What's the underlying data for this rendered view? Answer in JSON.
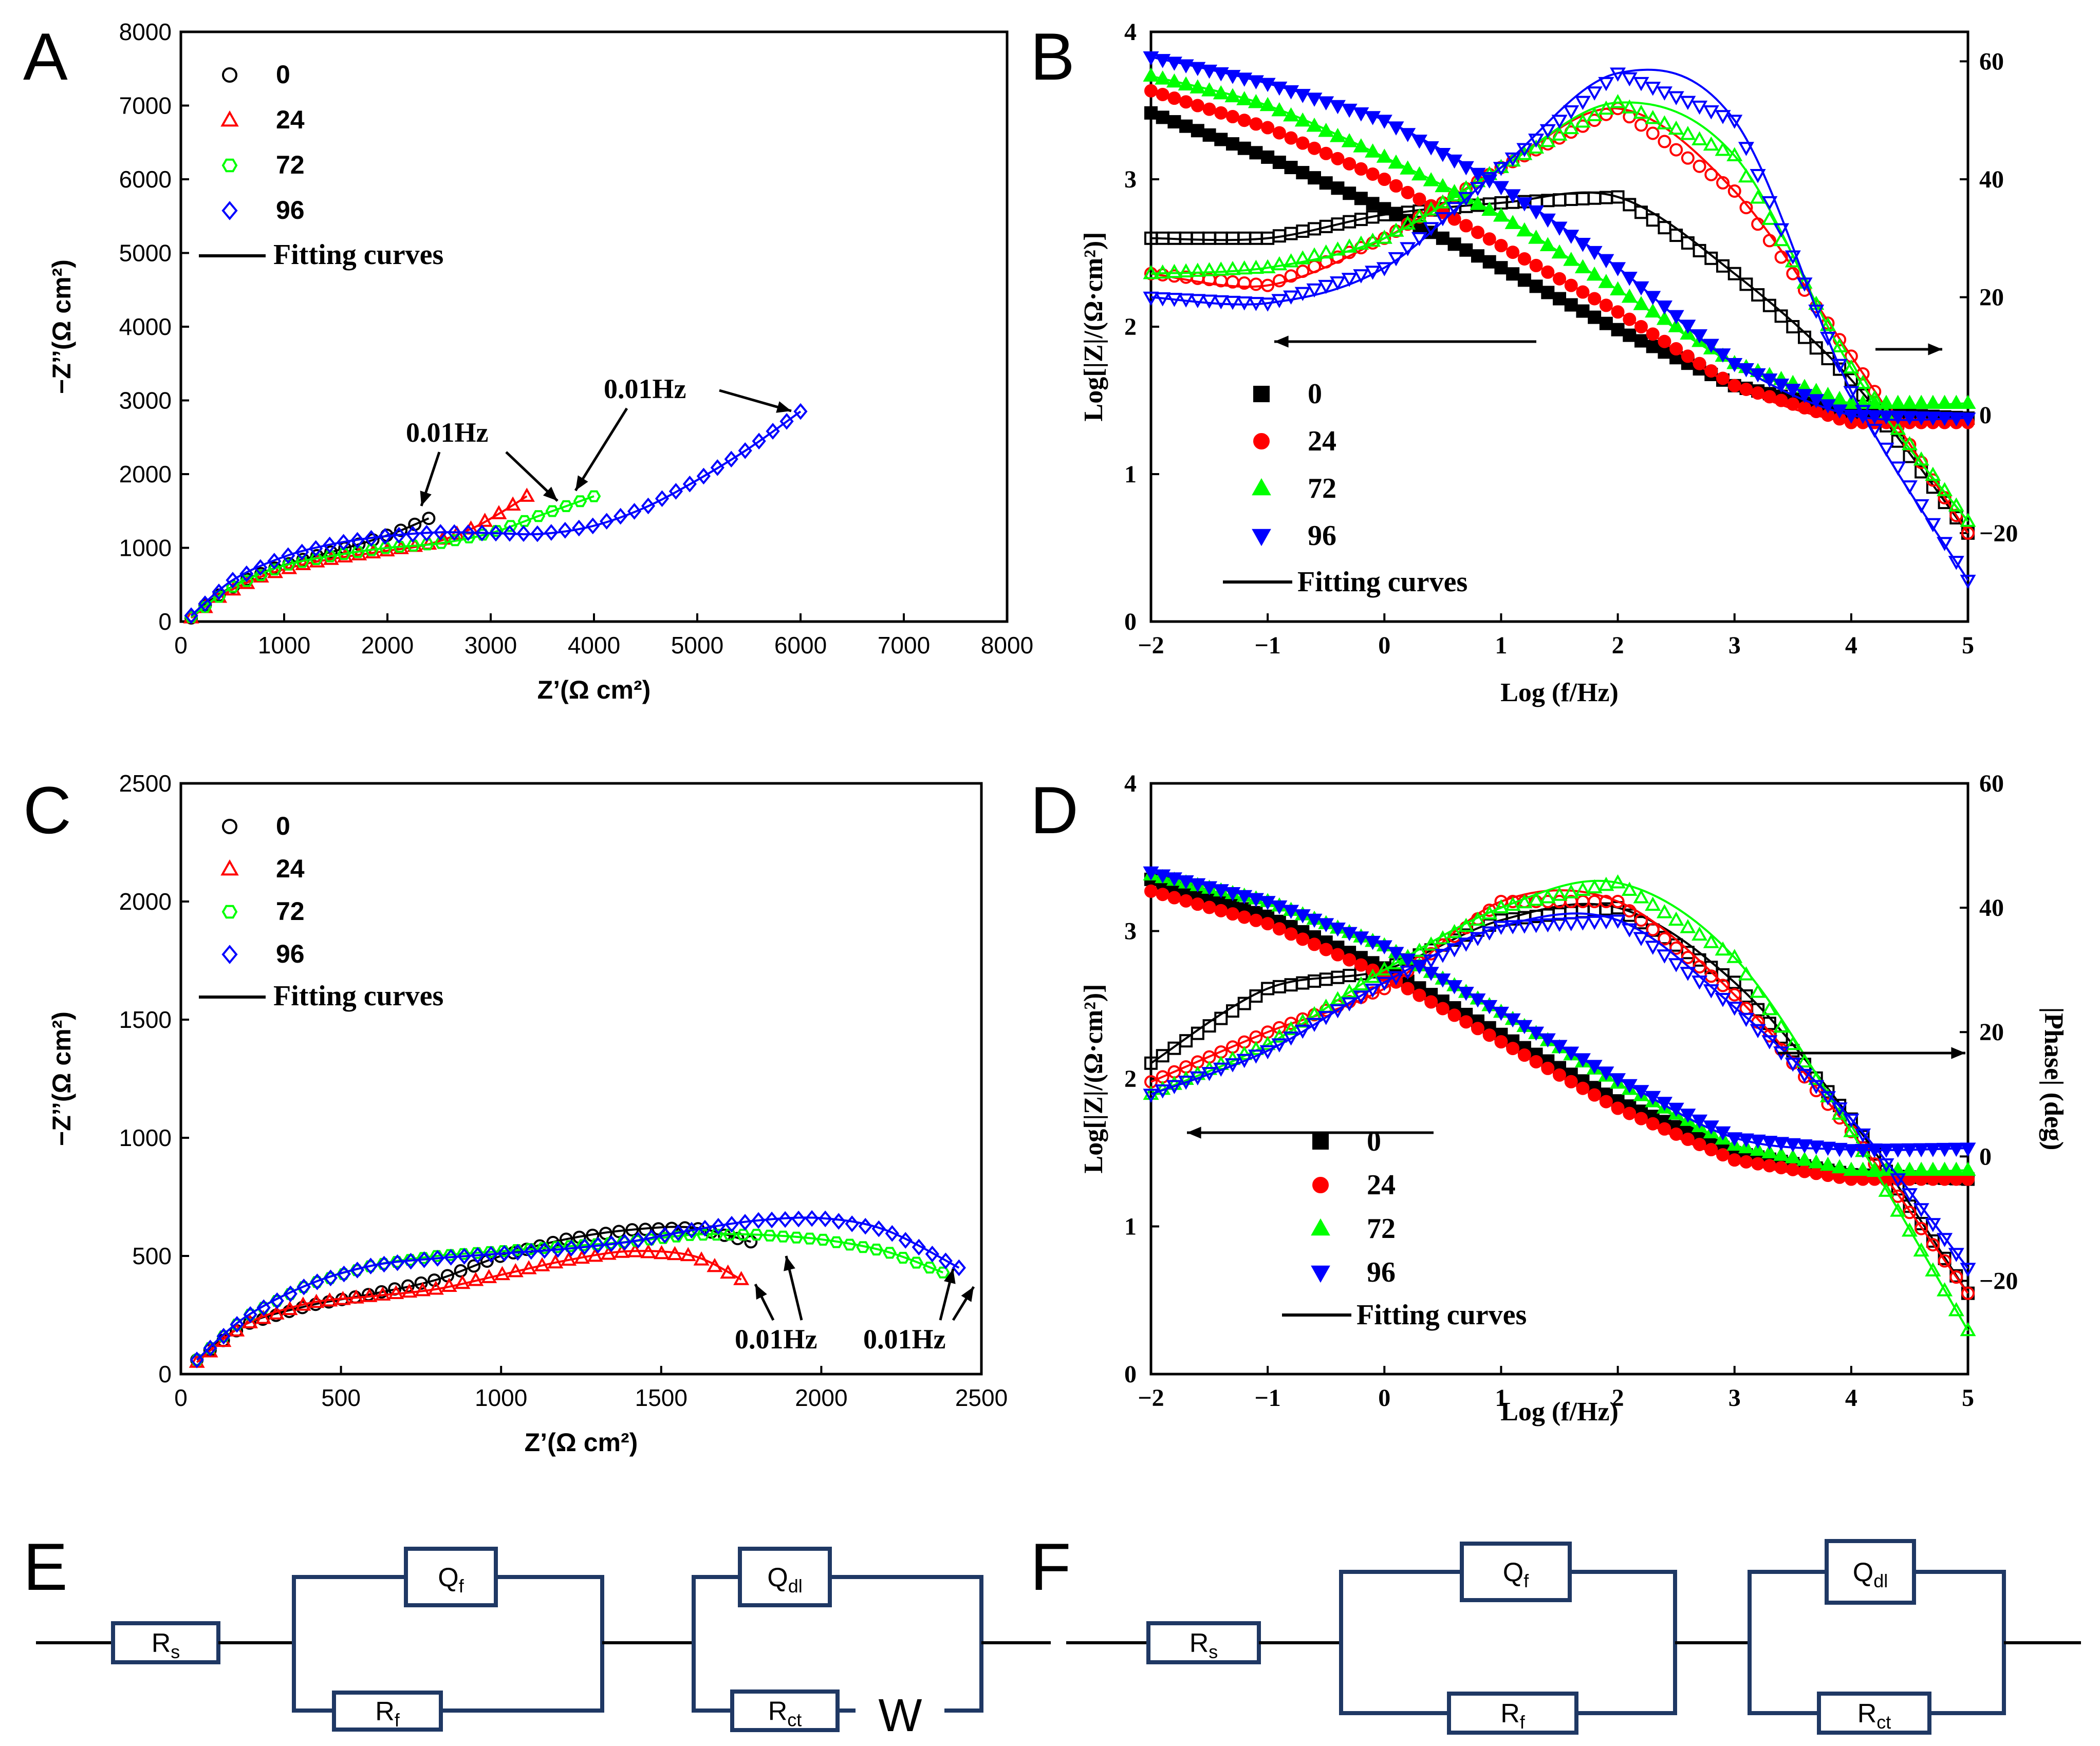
{
  "colors": {
    "s0": "#000000",
    "s24": "#ff0000",
    "s72": "#00ff00",
    "s96": "#0000ff",
    "frame": "#000000",
    "circuit": "#1f3864"
  },
  "legend_labels": [
    "0",
    "24",
    "72",
    "96"
  ],
  "fitting_label": "Fitting curves",
  "chart_data": [
    {
      "panel": "A",
      "type": "scatter",
      "title": "",
      "xlabel": "Z’(Ω cm²)",
      "ylabel": "−Z’’(Ω cm²)",
      "xlim": [
        0,
        8000
      ],
      "ylim": [
        0,
        8000
      ],
      "xticks": [
        "0",
        "1000",
        "2000",
        "3000",
        "4000",
        "5000",
        "6000",
        "7000",
        "8000"
      ],
      "yticks": [
        "0",
        "1000",
        "2000",
        "3000",
        "4000",
        "5000",
        "6000",
        "7000",
        "8000"
      ],
      "annotations": [
        "0.01Hz",
        "0.01Hz"
      ],
      "series": [
        {
          "name": "0",
          "x": [
            100,
            300,
            600,
            900,
            1200,
            1500,
            1800,
            2100,
            2400
          ],
          "y": [
            50,
            300,
            550,
            720,
            850,
            960,
            1080,
            1220,
            1400
          ]
        },
        {
          "name": "24",
          "x": [
            100,
            400,
            800,
            1200,
            1600,
            2000,
            2400,
            2800,
            3100,
            3350
          ],
          "y": [
            50,
            360,
            620,
            780,
            880,
            960,
            1050,
            1250,
            1480,
            1700
          ]
        },
        {
          "name": "72",
          "x": [
            100,
            500,
            1000,
            1500,
            2000,
            2500,
            3000,
            3500,
            4000
          ],
          "y": [
            60,
            470,
            760,
            900,
            1000,
            1060,
            1200,
            1450,
            1700
          ]
        },
        {
          "name": "96",
          "x": [
            100,
            500,
            1000,
            1500,
            2000,
            2500,
            3000,
            3500,
            4000,
            4500,
            5000,
            5500,
            6000
          ],
          "y": [
            80,
            560,
            880,
            1060,
            1160,
            1210,
            1200,
            1190,
            1300,
            1550,
            1920,
            2350,
            2850
          ]
        }
      ]
    },
    {
      "panel": "B",
      "type": "scatter",
      "title": "",
      "xlabel": "Log (f/Hz)",
      "ylabel": "Log[|Z|/(Ω·cm²)]",
      "xlim": [
        -2,
        5
      ],
      "ylim": [
        0,
        4
      ],
      "y2lim": [
        -35,
        65
      ],
      "xticks": [
        "−2",
        "−1",
        "0",
        "1",
        "2",
        "3",
        "4",
        "5"
      ],
      "yticks": [
        "0",
        "1",
        "2",
        "3",
        "4"
      ],
      "y2ticks": [
        "−20",
        "0",
        "20",
        "40",
        "60"
      ],
      "series": [
        {
          "name": "0",
          "x": [
            -2,
            -1,
            0,
            1,
            2,
            3,
            4,
            5
          ],
          "logZ": [
            3.45,
            3.15,
            2.8,
            2.4,
            1.98,
            1.6,
            1.42,
            1.38
          ],
          "phase": [
            30,
            30,
            34,
            36,
            37,
            24,
            6,
            -20
          ]
        },
        {
          "name": "24",
          "x": [
            -2,
            -1,
            0,
            1,
            2,
            3,
            4,
            5
          ],
          "logZ": [
            3.6,
            3.35,
            3.0,
            2.55,
            2.1,
            1.6,
            1.35,
            1.35
          ],
          "phase": [
            24,
            22,
            30,
            42,
            52,
            38,
            10,
            -20
          ]
        },
        {
          "name": "72",
          "x": [
            -2,
            -1,
            0,
            1,
            2,
            3,
            4,
            5
          ],
          "logZ": [
            3.7,
            3.5,
            3.15,
            2.75,
            2.25,
            1.75,
            1.48,
            1.48
          ],
          "phase": [
            24,
            25,
            30,
            42,
            53,
            44,
            8,
            -18
          ]
        },
        {
          "name": "96",
          "x": [
            -2,
            -1,
            0,
            1,
            2,
            3,
            4,
            5
          ],
          "logZ": [
            3.83,
            3.65,
            3.4,
            2.95,
            2.4,
            1.75,
            1.4,
            1.38
          ],
          "phase": [
            20,
            19,
            25,
            42,
            58,
            50,
            4,
            -28
          ]
        }
      ]
    },
    {
      "panel": "C",
      "type": "scatter",
      "title": "",
      "xlabel": "Z’(Ω cm²)",
      "ylabel": "−Z’’(Ω cm²)",
      "xlim": [
        0,
        2500
      ],
      "ylim": [
        0,
        2500
      ],
      "xticks": [
        "0",
        "500",
        "1000",
        "1500",
        "2000",
        "2500"
      ],
      "yticks": [
        "0",
        "500",
        "1000",
        "1500",
        "2000",
        "2500"
      ],
      "annotations": [
        "0.01Hz",
        "0.01Hz"
      ],
      "series": [
        {
          "name": "0",
          "x": [
            50,
            200,
            400,
            600,
            800,
            1000,
            1200,
            1400,
            1600,
            1780
          ],
          "y": [
            60,
            210,
            290,
            340,
            400,
            500,
            570,
            610,
            620,
            560
          ]
        },
        {
          "name": "24",
          "x": [
            50,
            200,
            400,
            600,
            800,
            1000,
            1200,
            1400,
            1600,
            1750
          ],
          "y": [
            50,
            210,
            300,
            330,
            360,
            420,
            480,
            520,
            500,
            400
          ]
        },
        {
          "name": "72",
          "x": [
            50,
            200,
            400,
            600,
            800,
            1000,
            1200,
            1400,
            1600,
            1800,
            2000,
            2200,
            2380
          ],
          "y": [
            60,
            240,
            380,
            460,
            500,
            520,
            540,
            560,
            590,
            590,
            570,
            520,
            430
          ]
        },
        {
          "name": "96",
          "x": [
            50,
            200,
            400,
            600,
            800,
            1000,
            1200,
            1400,
            1600,
            1800,
            2000,
            2200,
            2430
          ],
          "y": [
            60,
            240,
            380,
            460,
            490,
            510,
            530,
            560,
            610,
            650,
            660,
            610,
            450
          ]
        }
      ]
    },
    {
      "panel": "D",
      "type": "scatter",
      "title": "",
      "xlabel": "Log (f/Hz)",
      "ylabel": "Log[|Z|/(Ω·cm²)]",
      "y2label": "|Phase| (deg)",
      "xlim": [
        -2,
        5
      ],
      "ylim": [
        0,
        4
      ],
      "y2lim": [
        -35,
        60
      ],
      "xticks": [
        "−2",
        "−1",
        "0",
        "1",
        "2",
        "3",
        "4",
        "5"
      ],
      "yticks": [
        "0",
        "1",
        "2",
        "3",
        "4"
      ],
      "y2ticks": [
        "−20",
        "0",
        "20",
        "40",
        "60"
      ],
      "series": [
        {
          "name": "0",
          "x": [
            -2,
            -1,
            0,
            1,
            2,
            3,
            4,
            5
          ],
          "logZ": [
            3.35,
            3.1,
            2.75,
            2.3,
            1.85,
            1.5,
            1.35,
            1.32
          ],
          "phase": [
            15,
            27,
            30,
            38,
            40,
            28,
            6,
            -22
          ]
        },
        {
          "name": "24",
          "x": [
            -2,
            -1,
            0,
            1,
            2,
            3,
            4,
            5
          ],
          "logZ": [
            3.27,
            3.05,
            2.7,
            2.25,
            1.8,
            1.45,
            1.32,
            1.32
          ],
          "phase": [
            12,
            20,
            27,
            41,
            41,
            26,
            4,
            -22
          ]
        },
        {
          "name": "72",
          "x": [
            -2,
            -1,
            0,
            1,
            2,
            3,
            4,
            5
          ],
          "logZ": [
            3.38,
            3.2,
            2.9,
            2.45,
            1.97,
            1.55,
            1.38,
            1.38
          ],
          "phase": [
            10,
            18,
            30,
            40,
            44,
            32,
            4,
            -28
          ]
        },
        {
          "name": "96",
          "x": [
            -2,
            -1,
            0,
            1,
            2,
            3,
            4,
            5
          ],
          "logZ": [
            3.4,
            3.2,
            2.9,
            2.45,
            2.0,
            1.6,
            1.52,
            1.53
          ],
          "phase": [
            10,
            17,
            28,
            37,
            38,
            24,
            6,
            -18
          ]
        }
      ]
    }
  ],
  "circuits": {
    "E": {
      "label": "E",
      "rs": [
        "R",
        "s"
      ],
      "qf": [
        "Q",
        "f"
      ],
      "rf": [
        "R",
        "f"
      ],
      "qdl": [
        "Q",
        "dl"
      ],
      "rct": [
        "R",
        "ct"
      ],
      "w": "W"
    },
    "F": {
      "label": "F",
      "rs": [
        "R",
        "s"
      ],
      "qf": [
        "Q",
        "f"
      ],
      "rf": [
        "R",
        "f"
      ],
      "qdl": [
        "Q",
        "dl"
      ],
      "rct": [
        "R",
        "ct"
      ]
    }
  }
}
